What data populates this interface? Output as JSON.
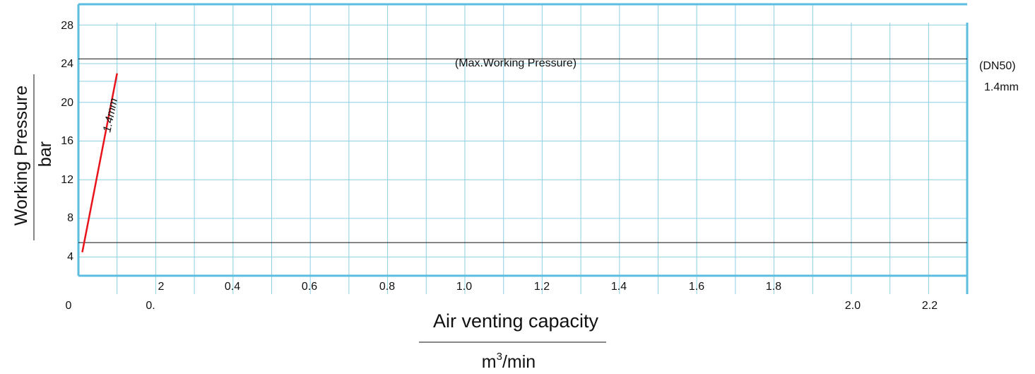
{
  "chart_data": {
    "type": "line",
    "xlabel": "Air venting capacity",
    "xunit_base": "m",
    "xunit_exp": "3",
    "xunit_rest": "/min",
    "ylabel": "Working Pressure",
    "yunit": "bar",
    "xlim": [
      0,
      2.3
    ],
    "ylim": [
      0,
      28
    ],
    "y_ticks": [
      "4",
      "8",
      "12",
      "16",
      "20",
      "24",
      "28"
    ],
    "x_ticks_upper": [
      "2",
      "0.4",
      "0.6",
      "0.8",
      "1.0",
      "1.2",
      "1.4",
      "1.6",
      "1.8"
    ],
    "x_ticks_lower": [
      "0",
      "0.",
      "2.0",
      "2.2"
    ],
    "grid": true,
    "reference_lines": [
      {
        "label": "(Max.Working Pressure)",
        "y": 22.5
      },
      {
        "label": "",
        "y": 3.5
      }
    ],
    "series": [
      {
        "name": "1.4mm",
        "color": "#e8141b",
        "points": [
          [
            0.01,
            2.5
          ],
          [
            0.1,
            21
          ]
        ]
      }
    ],
    "right_annotations": [
      "(DN50)",
      "1.4mm"
    ],
    "colors": {
      "grid": "#8ccfe2",
      "border": "#5bbde0",
      "series": "#e8141b",
      "reference": "#111111"
    }
  }
}
